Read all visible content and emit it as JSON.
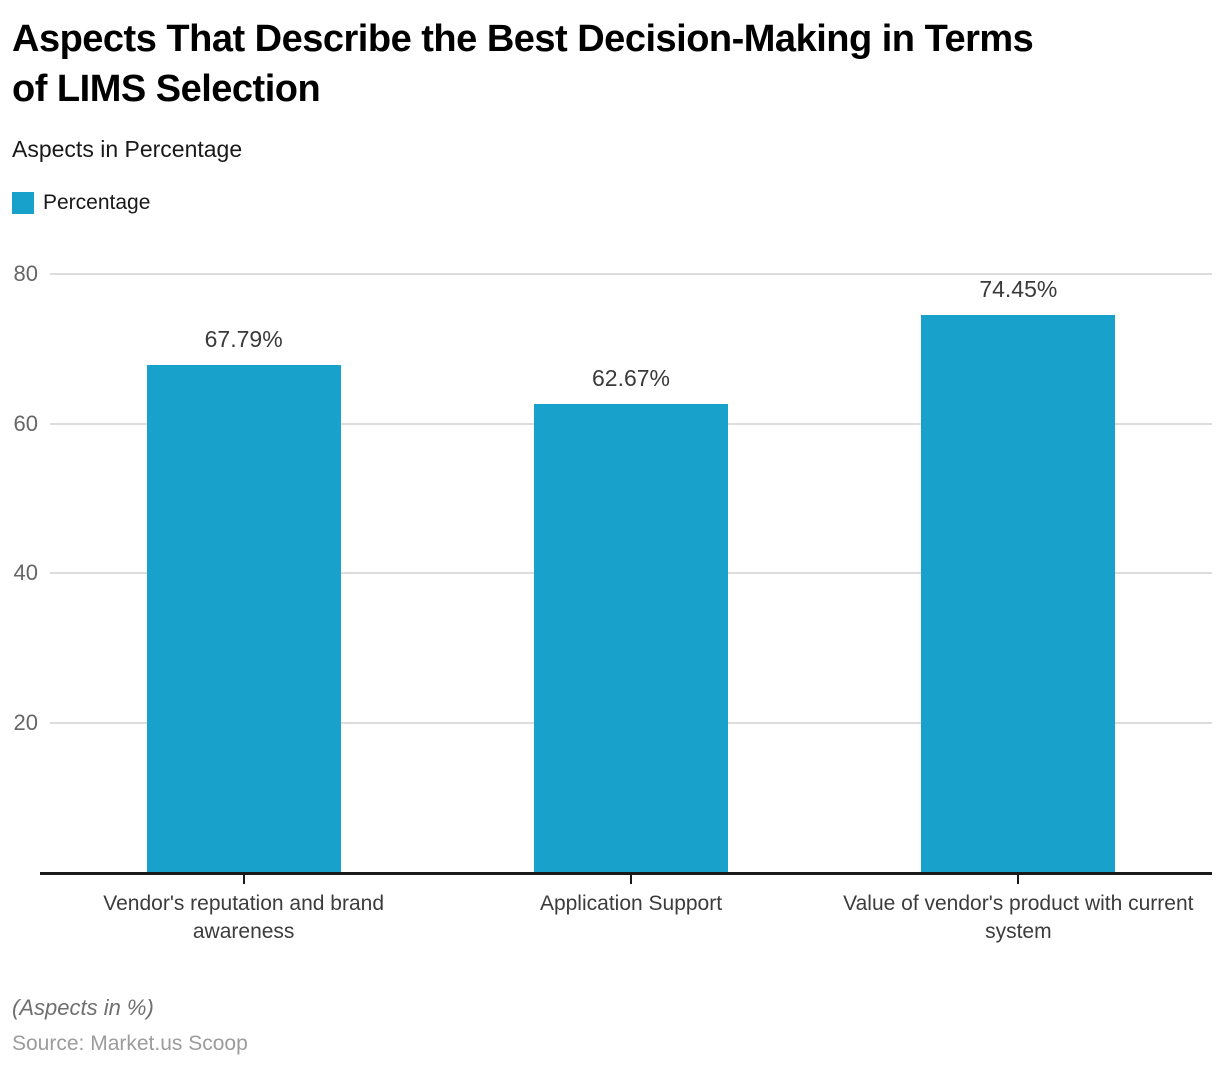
{
  "chart_data": {
    "type": "bar",
    "title": "Aspects That Describe the Best Decision-Making in Terms\nof LIMS Selection",
    "subtitle": "Aspects in Percentage",
    "legend": {
      "label": "Percentage",
      "position": "top-left"
    },
    "categories": [
      "Vendor's reputation and brand awareness",
      "Application Support",
      "Value of vendor's product with current system"
    ],
    "values": [
      67.79,
      62.67,
      74.45
    ],
    "value_labels": [
      "67.79%",
      "62.67%",
      "74.45%"
    ],
    "series": [
      {
        "name": "Percentage",
        "values": [
          67.79,
          62.67,
          74.45
        ]
      }
    ],
    "xlabel": "",
    "ylabel": "",
    "yticks": [
      20,
      40,
      60,
      80
    ],
    "ylim": [
      0,
      85
    ],
    "grid": true,
    "bar_color": "#18A1CB",
    "grid_color": "#dcdcdc",
    "axis_color": "#1a1a1a",
    "note": "(Aspects in %)",
    "source": "Source: Market.us Scoop"
  }
}
